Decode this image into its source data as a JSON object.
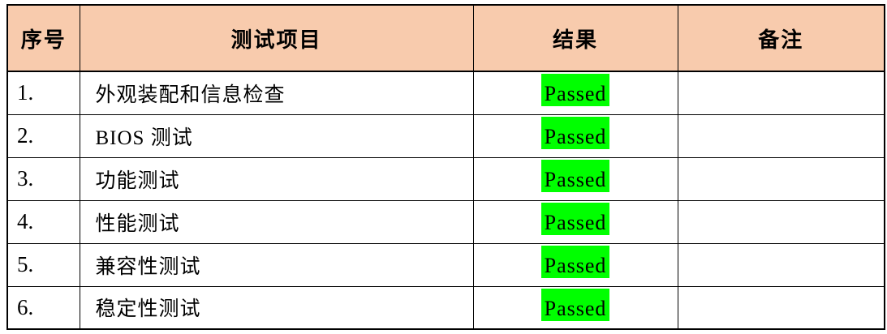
{
  "colors": {
    "header_bg": "#F8CBAD",
    "pass_bg": "#00FF00",
    "border": "#000000",
    "text": "#000000"
  },
  "table": {
    "headers": {
      "no": "序号",
      "item": "测试项目",
      "result": "结果",
      "remark": "备注"
    },
    "rows": [
      {
        "no": "1.",
        "item": "外观装配和信息检查",
        "result": "Passed",
        "remark": ""
      },
      {
        "no": "2.",
        "item": "BIOS 测试",
        "result": "Passed",
        "remark": ""
      },
      {
        "no": "3.",
        "item": "功能测试",
        "result": "Passed",
        "remark": ""
      },
      {
        "no": "4.",
        "item": "性能测试",
        "result": "Passed",
        "remark": ""
      },
      {
        "no": "5.",
        "item": "兼容性测试",
        "result": "Passed",
        "remark": ""
      },
      {
        "no": "6.",
        "item": "稳定性测试",
        "result": "Passed",
        "remark": ""
      }
    ]
  }
}
